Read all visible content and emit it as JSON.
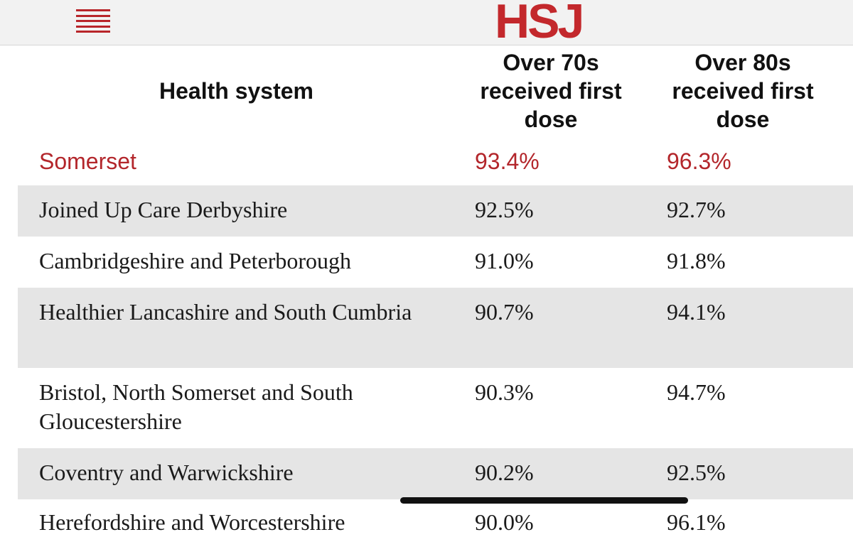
{
  "header": {
    "logo_text": "HSJ",
    "brand_color": "#c3282c",
    "menu_icon": "hamburger-menu-icon"
  },
  "table": {
    "headers": {
      "system": "Health system",
      "over70": "Over 70s received first dose",
      "over80": "Over 80s received first dose"
    },
    "rows": [
      {
        "name": "Somerset",
        "over70": "93.4%",
        "over80": "96.3%"
      },
      {
        "name": "Joined Up Care Derbyshire",
        "over70": "92.5%",
        "over80": "92.7%"
      },
      {
        "name": "Cambridgeshire and Peterborough",
        "over70": "91.0%",
        "over80": "91.8%"
      },
      {
        "name": "Healthier Lancashire and South Cumbria",
        "over70": "90.7%",
        "over80": "94.1%"
      },
      {
        "name": "Bristol, North Somerset and South Gloucestershire",
        "over70": "90.3%",
        "over80": "94.7%"
      },
      {
        "name": "Coventry and Warwickshire",
        "over70": "90.2%",
        "over80": "92.5%"
      },
      {
        "name": "Herefordshire and Worcestershire",
        "over70": "90.0%",
        "over80": "96.1%"
      }
    ],
    "highlight_color": "#b3262b",
    "stripe_color": "#e5e5e5"
  }
}
